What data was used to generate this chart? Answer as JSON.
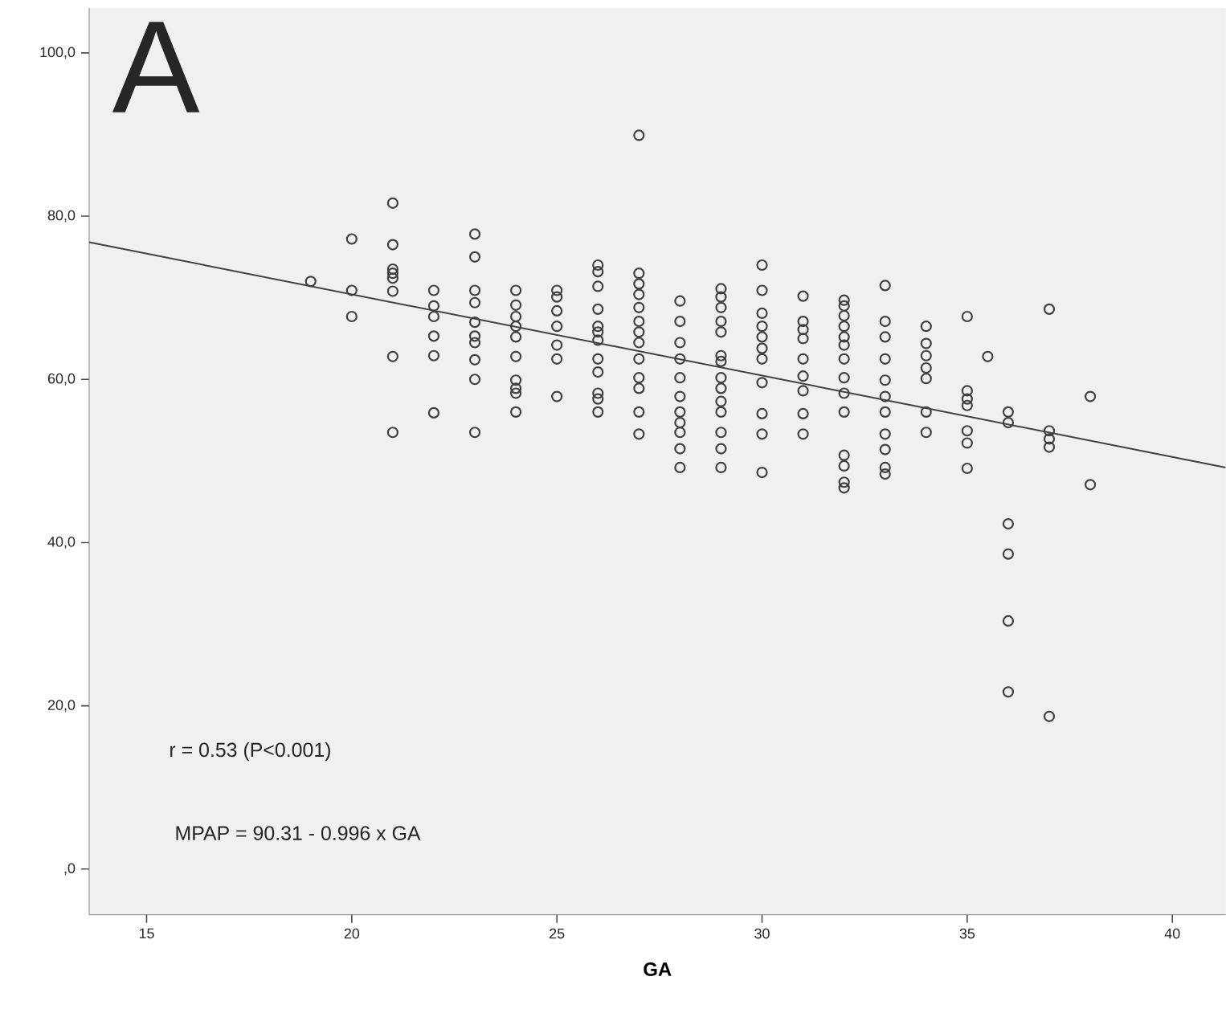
{
  "chart_data": {
    "type": "scatter",
    "xlabel": "GA",
    "xlim": [
      13.6,
      41.3
    ],
    "ylim": [
      -5.6,
      105.5
    ],
    "xticks": [
      15,
      20,
      25,
      30,
      35,
      40
    ],
    "yticks": [
      {
        "value": 0,
        "label": ",0"
      },
      {
        "value": 20,
        "label": "20,0"
      },
      {
        "value": 40,
        "label": "40,0"
      },
      {
        "value": 60,
        "label": "60,0"
      },
      {
        "value": 80,
        "label": "80,0"
      },
      {
        "value": 100,
        "label": "100,0"
      }
    ],
    "annotations": [
      "A",
      "r = 0.53 (P<0.001)",
      "MPAP = 90.31 - 0.996 x GA"
    ],
    "series": [
      {
        "marker": "circle",
        "color": "#404040",
        "x": [
          19,
          20,
          20,
          20,
          21,
          21,
          21,
          21,
          21,
          21,
          21,
          21,
          22,
          22,
          22,
          22,
          22,
          22,
          23,
          23,
          23,
          23,
          23,
          23,
          23,
          23,
          23,
          23,
          24,
          24,
          24,
          24,
          24,
          24,
          24,
          24,
          24,
          24,
          25,
          25,
          25,
          25,
          25,
          25,
          25,
          26,
          26,
          26,
          26,
          26,
          26,
          26,
          26,
          26,
          26,
          26,
          26,
          27,
          27,
          27,
          27,
          27,
          27,
          27,
          27,
          27,
          27,
          27,
          27,
          27,
          28,
          28,
          28,
          28,
          28,
          28,
          28,
          28,
          28,
          28,
          28,
          29,
          29,
          29,
          29,
          29,
          29,
          29,
          29,
          29,
          29,
          29,
          29,
          29,
          29,
          30,
          30,
          30,
          30,
          30,
          30,
          30,
          30,
          30,
          30,
          30,
          31,
          31,
          31,
          31,
          31,
          31,
          31,
          31,
          31,
          32,
          32,
          32,
          32,
          32,
          32,
          32,
          32,
          32,
          32,
          32,
          32,
          32,
          32,
          33,
          33,
          33,
          33,
          33,
          33,
          33,
          33,
          33,
          33,
          33,
          34,
          34,
          34,
          34,
          34,
          34,
          34,
          35,
          35,
          35,
          35,
          35,
          35,
          35,
          35.5,
          36,
          36,
          36,
          36,
          36,
          36,
          37,
          37,
          37,
          37,
          37,
          38,
          38
        ],
        "values": [
          72.0,
          77.2,
          70.9,
          67.7,
          81.6,
          76.5,
          73.5,
          73.0,
          72.4,
          70.8,
          62.8,
          53.5,
          70.9,
          69.0,
          67.7,
          65.3,
          62.9,
          55.9,
          77.8,
          75.0,
          70.9,
          69.4,
          67.0,
          65.3,
          64.5,
          62.4,
          60.0,
          53.5,
          70.9,
          69.1,
          67.7,
          66.5,
          65.2,
          62.8,
          59.9,
          58.9,
          58.3,
          56.0,
          70.9,
          70.1,
          68.4,
          66.5,
          64.2,
          62.5,
          57.9,
          74.0,
          73.2,
          71.4,
          68.6,
          66.5,
          65.8,
          64.8,
          62.5,
          60.9,
          58.3,
          57.6,
          56.0,
          89.9,
          73.0,
          71.7,
          70.4,
          68.8,
          67.1,
          65.8,
          64.5,
          62.5,
          60.2,
          58.9,
          56.0,
          53.3,
          69.6,
          67.1,
          64.5,
          62.5,
          60.2,
          57.9,
          56.0,
          54.7,
          53.5,
          51.5,
          49.2,
          71.1,
          70.1,
          68.8,
          67.1,
          65.8,
          62.9,
          62.2,
          60.2,
          58.9,
          57.3,
          56.0,
          53.5,
          51.5,
          49.2,
          74.0,
          70.9,
          68.1,
          66.5,
          65.2,
          63.8,
          62.5,
          59.6,
          55.8,
          53.3,
          48.6,
          70.2,
          67.1,
          66.1,
          65.0,
          62.5,
          60.4,
          58.6,
          55.8,
          53.3,
          69.7,
          69.0,
          67.8,
          66.5,
          65.2,
          64.2,
          62.5,
          60.2,
          58.3,
          56.0,
          50.7,
          49.4,
          47.4,
          46.7,
          71.5,
          67.1,
          65.2,
          62.5,
          59.9,
          57.9,
          56.0,
          53.3,
          51.4,
          49.2,
          48.4,
          66.5,
          64.4,
          62.9,
          61.4,
          60.1,
          56.0,
          53.5,
          67.7,
          58.6,
          57.6,
          56.8,
          53.7,
          52.2,
          49.1,
          62.8,
          56.0,
          54.7,
          42.3,
          38.6,
          30.4,
          21.7,
          68.6,
          53.7,
          52.7,
          51.7,
          18.7,
          57.9,
          47.1
        ]
      },
      {
        "type": "line",
        "color": "#404040",
        "x": [
          13.6,
          41.3
        ],
        "values": [
          76.8,
          49.2
        ]
      }
    ]
  }
}
